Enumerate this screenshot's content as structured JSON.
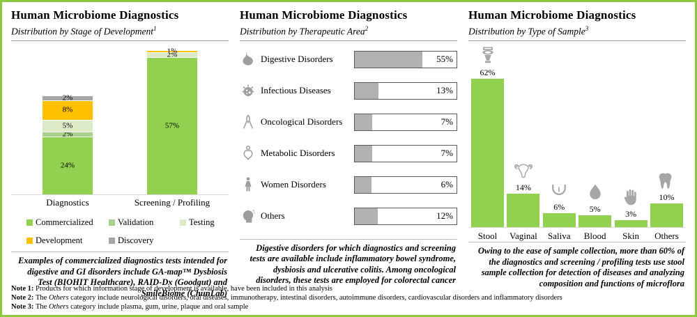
{
  "page": {
    "border_color": "#8DC63F"
  },
  "panels": {
    "left": {
      "title": "Human Microbiome Diagnostics",
      "subtitle": "Distribution by Stage of Development",
      "note_ref": "1",
      "takeaway": "Examples of commercialized diagnostics tests intended for digestive and GI disorders include GA-map™ Dysbiosis Test (BIOHIT Healthcare), RAID-Dx (Goodgut) and SmileBiome (ChunLab)"
    },
    "middle": {
      "title": "Human Microbiome Diagnostics",
      "subtitle": "Distribution by Therapeutic Area",
      "note_ref": "2",
      "takeaway": "Digestive disorders for which diagnostics and screening tests are available include inflammatory bowel syndrome, dysbiosis and ulcerative colitis. Among oncological disorders, these tests are employed for colorectal cancer"
    },
    "right": {
      "title": "Human Microbiome Diagnostics",
      "subtitle": "Distribution by Type of Sample",
      "note_ref": "3",
      "takeaway": "Owing to the ease of sample collection, more than 60% of the diagnostics and screening / profiling tests use stool sample collection for detection of diseases and analyzing composition and functions of microflora"
    }
  },
  "chart_data": [
    {
      "type": "bar",
      "subtype": "stacked-column",
      "title": "Distribution by Stage of Development",
      "ylim": [
        0,
        62
      ],
      "grid": false,
      "legend_position": "bottom",
      "stages": [
        {
          "name": "Commercialized",
          "color": "#92D050"
        },
        {
          "name": "Validation",
          "color": "#A9D18E"
        },
        {
          "name": "Testing",
          "color": "#DCEAC8"
        },
        {
          "name": "Development",
          "color": "#FFC000"
        },
        {
          "name": "Discovery",
          "color": "#A6A6A6"
        }
      ],
      "bars": [
        {
          "category": "Diagnostics",
          "segments": [
            {
              "stage": "Commercialized",
              "value": 24
            },
            {
              "stage": "Validation",
              "value": 2
            },
            {
              "stage": "Testing",
              "value": 5
            },
            {
              "stage": "Development",
              "value": 8
            },
            {
              "stage": "Discovery",
              "value": 2
            }
          ]
        },
        {
          "category": "Screening / Profiling",
          "segments": [
            {
              "stage": "Commercialized",
              "value": 57
            },
            {
              "stage": "Testing",
              "value": 2
            },
            {
              "stage": "Development",
              "value": 1
            }
          ]
        }
      ]
    },
    {
      "type": "bar",
      "subtype": "horizontal-data-bars",
      "title": "Distribution by Therapeutic Area",
      "bar_color": "#B2B2B2",
      "bar_border_color": "#595959",
      "rows": [
        {
          "label": "Digestive Disorders",
          "value": 55,
          "icon": "stomach-icon"
        },
        {
          "label": "Infectious Diseases",
          "value": 13,
          "icon": "germ-icon"
        },
        {
          "label": "Oncological Disorders",
          "value": 7,
          "icon": "awareness-ribbon-icon"
        },
        {
          "label": "Metabolic Disorders",
          "value": 7,
          "icon": "body-icon"
        },
        {
          "label": "Women Disorders",
          "value": 6,
          "icon": "woman-icon"
        },
        {
          "label": "Others",
          "value": 12,
          "icon": "head-icon"
        }
      ]
    },
    {
      "type": "bar",
      "subtype": "column",
      "title": "Distribution by Type of Sample",
      "bar_color": "#92D050",
      "categories": [
        "Stool",
        "Vaginal",
        "Saliva",
        "Blood",
        "Skin",
        "Others"
      ],
      "values": [
        62,
        14,
        6,
        5,
        3,
        10
      ],
      "icons": [
        "toilet-icon",
        "uterus-icon",
        "tongue-icon",
        "droplet-icon",
        "hand-icon",
        "tooth-icon"
      ]
    }
  ],
  "notes": [
    {
      "label": "Note 1:",
      "parts": [
        {
          "text": "Products for which information stage of development is available, have been included in this analysis",
          "italic": false
        }
      ]
    },
    {
      "label": "Note 2:",
      "parts": [
        {
          "text": "The ",
          "italic": false
        },
        {
          "text": "Others",
          "italic": true
        },
        {
          "text": " category include neurological disorders, oral diseases, immunotherapy, intestinal disorders, autoimmune disorders, cardiovascular disorders and inflammatory disorders",
          "italic": false
        }
      ]
    },
    {
      "label": "Note 3:",
      "parts": [
        {
          "text": "The ",
          "italic": false
        },
        {
          "text": "Others",
          "italic": true
        },
        {
          "text": " category include plasma, gum, urine, plaque and oral sample",
          "italic": false
        }
      ]
    }
  ]
}
